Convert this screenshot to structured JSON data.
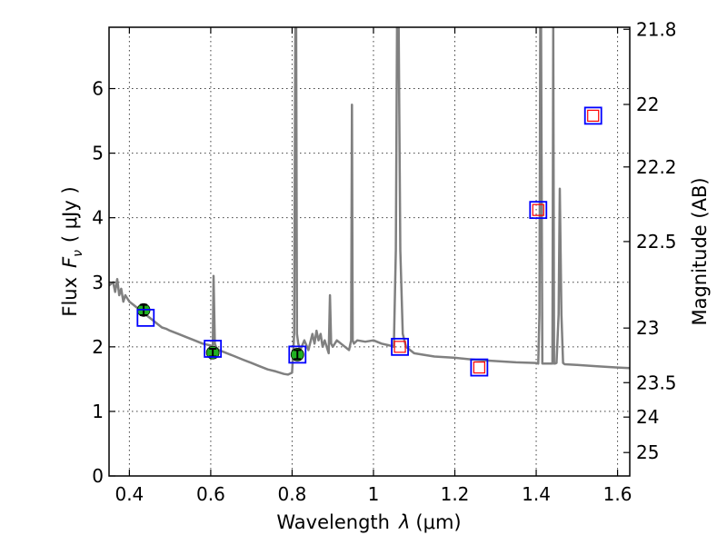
{
  "chart_data": {
    "type": "scatter",
    "title": "",
    "xlabel": {
      "prefix": "Wavelength",
      "symbol": "λ",
      "unit": "(μm)"
    },
    "ylabel": {
      "prefix": "Flux",
      "symbol": "F",
      "subscript": "ν",
      "unit": "( μJy )"
    },
    "y2label": "Magnitude (AB)",
    "xlim": [
      0.35,
      1.63
    ],
    "ylim": [
      0,
      6.95
    ],
    "grid": true,
    "x_ticks": [
      {
        "value": 0.4,
        "label": "0.4"
      },
      {
        "value": 0.6,
        "label": "0.6"
      },
      {
        "value": 0.8,
        "label": "0.8"
      },
      {
        "value": 1.0,
        "label": "1"
      },
      {
        "value": 1.2,
        "label": "1.2"
      },
      {
        "value": 1.4,
        "label": "1.4"
      },
      {
        "value": 1.6,
        "label": "1.6"
      }
    ],
    "y_ticks": [
      {
        "value": 0,
        "label": "0"
      },
      {
        "value": 1,
        "label": "1"
      },
      {
        "value": 2,
        "label": "2"
      },
      {
        "value": 3,
        "label": "3"
      },
      {
        "value": 4,
        "label": "4"
      },
      {
        "value": 5,
        "label": "5"
      },
      {
        "value": 6,
        "label": "6"
      }
    ],
    "y2_ticks": [
      {
        "value": 21.8,
        "label": "21.8"
      },
      {
        "value": 22.0,
        "label": "22"
      },
      {
        "value": 22.2,
        "label": "22.2"
      },
      {
        "value": 22.5,
        "label": "22.5"
      },
      {
        "value": 23.0,
        "label": "23"
      },
      {
        "value": 23.5,
        "label": "23.5"
      },
      {
        "value": 24.0,
        "label": "24"
      },
      {
        "value": 25.0,
        "label": "25"
      }
    ],
    "series": [
      {
        "type": "line",
        "color": "#808080",
        "x": [
          0.35,
          0.36,
          0.365,
          0.37,
          0.375,
          0.38,
          0.385,
          0.39,
          0.395,
          0.4,
          0.41,
          0.42,
          0.43,
          0.44,
          0.45,
          0.46,
          0.47,
          0.48,
          0.49,
          0.5,
          0.52,
          0.54,
          0.56,
          0.58,
          0.6,
          0.605,
          0.607,
          0.61,
          0.613,
          0.615,
          0.62,
          0.64,
          0.66,
          0.68,
          0.7,
          0.72,
          0.74,
          0.76,
          0.78,
          0.79,
          0.8,
          0.805,
          0.808,
          0.81,
          0.812,
          0.815,
          0.82,
          0.83,
          0.84,
          0.85,
          0.855,
          0.86,
          0.865,
          0.87,
          0.875,
          0.88,
          0.89,
          0.893,
          0.896,
          0.9,
          0.91,
          0.92,
          0.93,
          0.94,
          0.945,
          0.947,
          0.949,
          0.952,
          0.96,
          0.98,
          1.0,
          1.02,
          1.04,
          1.05,
          1.055,
          1.058,
          1.062,
          1.066,
          1.072,
          1.08,
          1.09,
          1.1,
          1.12,
          1.15,
          1.2,
          1.25,
          1.3,
          1.35,
          1.4,
          1.405,
          1.408,
          1.41,
          1.412,
          1.415,
          1.44,
          1.442,
          1.444,
          1.446,
          1.45,
          1.455,
          1.458,
          1.462,
          1.466,
          1.47,
          1.5,
          1.55,
          1.6,
          1.63
        ],
        "y": [
          2.95,
          3.0,
          2.85,
          3.05,
          2.8,
          2.9,
          2.7,
          2.8,
          2.75,
          2.7,
          2.65,
          2.6,
          2.55,
          2.5,
          2.45,
          2.4,
          2.35,
          2.3,
          2.28,
          2.25,
          2.2,
          2.15,
          2.1,
          2.05,
          2.02,
          2.0,
          3.1,
          2.05,
          2.0,
          1.98,
          1.95,
          1.9,
          1.85,
          1.8,
          1.75,
          1.7,
          1.65,
          1.62,
          1.58,
          1.57,
          1.6,
          2.2,
          6.95,
          6.95,
          2.2,
          2.05,
          1.95,
          2.1,
          1.95,
          2.2,
          2.05,
          2.25,
          2.1,
          2.2,
          2.0,
          2.1,
          1.9,
          2.8,
          2.05,
          2.0,
          2.1,
          2.05,
          2.0,
          1.95,
          2.1,
          5.75,
          2.1,
          2.05,
          2.1,
          2.08,
          2.1,
          2.05,
          2.02,
          2.0,
          3.5,
          6.95,
          6.95,
          3.5,
          2.2,
          2.0,
          1.95,
          1.9,
          1.88,
          1.85,
          1.83,
          1.8,
          1.78,
          1.76,
          1.75,
          1.74,
          2.5,
          6.95,
          6.95,
          1.74,
          1.74,
          6.95,
          1.74,
          1.74,
          1.75,
          2.5,
          4.45,
          2.5,
          1.75,
          1.73,
          1.72,
          1.7,
          1.68,
          1.67
        ]
      },
      {
        "name": "",
        "type": "scatter",
        "marker": "circle-errorbar",
        "color": "#22b022",
        "x": [
          0.435,
          0.605,
          0.813
        ],
        "y": [
          2.57,
          1.91,
          1.88
        ],
        "yerr": [
          0.08,
          0.06,
          0.07
        ]
      },
      {
        "type": "scatter",
        "marker": "square",
        "color": "#0000ff",
        "x": [
          0.44,
          0.605,
          0.813,
          1.065,
          1.26,
          1.405,
          1.54
        ],
        "y": [
          2.45,
          1.97,
          1.88,
          2.0,
          1.68,
          4.12,
          5.58
        ]
      },
      {
        "type": "scatter",
        "marker": "square",
        "color": "#ff0000",
        "x": [
          1.065,
          1.26,
          1.405,
          1.54
        ],
        "y": [
          2.0,
          1.68,
          4.12,
          5.58
        ]
      }
    ]
  }
}
